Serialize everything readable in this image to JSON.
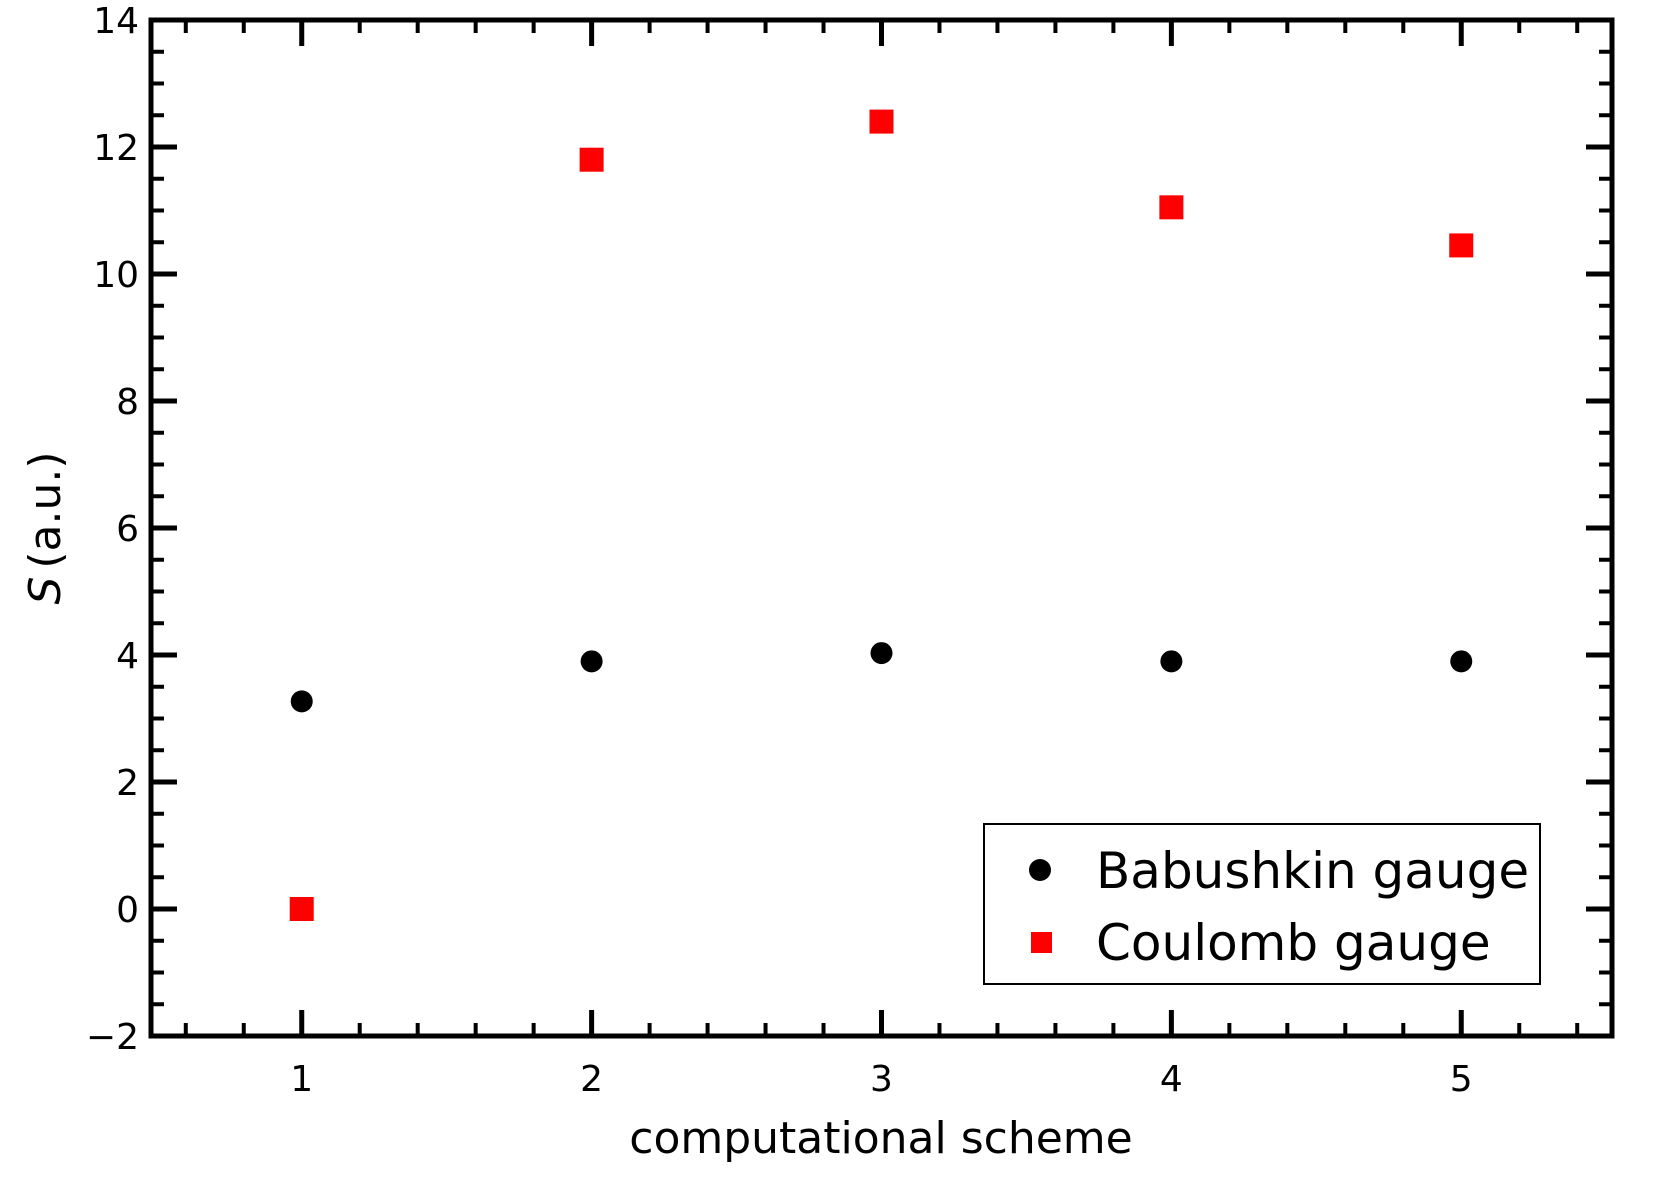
{
  "chart_data": {
    "type": "scatter",
    "title": "",
    "xlabel": "computational scheme",
    "ylabel_symbol": "S",
    "ylabel_unit": "(a.u.)",
    "xlim": [
      0.48,
      5.52
    ],
    "ylim": [
      -2,
      14
    ],
    "xticks": [
      1,
      2,
      3,
      4,
      5
    ],
    "yticks": [
      -2,
      0,
      2,
      4,
      6,
      8,
      10,
      12,
      14
    ],
    "ytick_labels": [
      "−2",
      "0",
      "2",
      "4",
      "6",
      "8",
      "10",
      "12",
      "14"
    ],
    "grid": false,
    "legend_position": "bottom-right",
    "series": [
      {
        "name": "Babushkin gauge",
        "marker": "circle",
        "color": "#000000",
        "x": [
          1,
          2,
          3,
          4,
          5
        ],
        "y": [
          3.27,
          3.9,
          4.03,
          3.9,
          3.9
        ]
      },
      {
        "name": "Coulomb gauge",
        "marker": "square",
        "color": "#ff0000",
        "x": [
          1,
          2,
          3,
          4,
          5
        ],
        "y": [
          0.0,
          11.8,
          12.4,
          11.05,
          10.45
        ]
      }
    ]
  }
}
